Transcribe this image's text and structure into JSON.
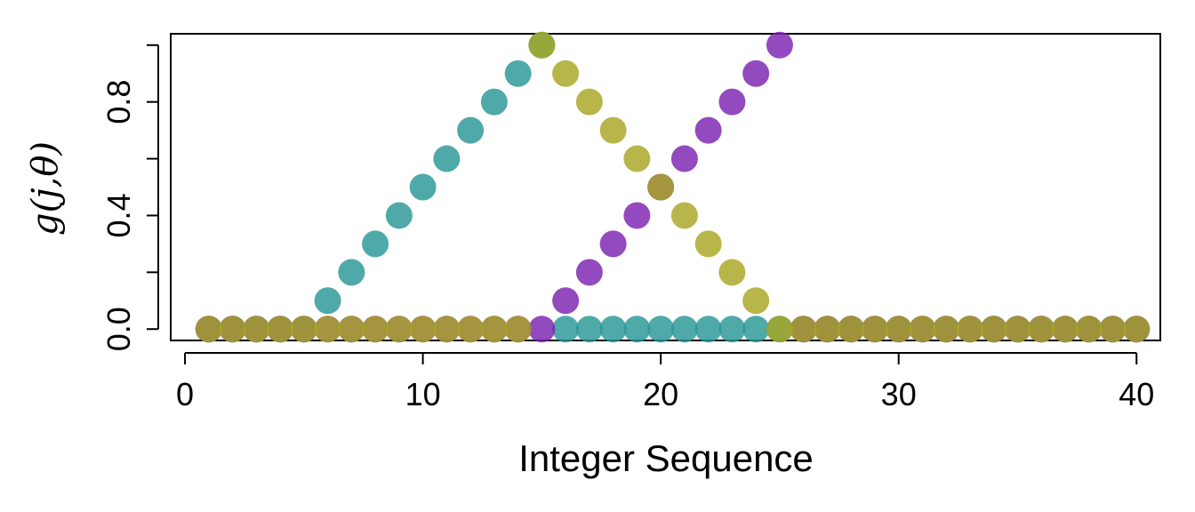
{
  "chart_data": {
    "type": "scatter",
    "xlabel": "Integer Sequence",
    "ylabel": "g(j,θ)",
    "xlim": [
      -0.6,
      41.0
    ],
    "ylim": [
      -0.04,
      1.04
    ],
    "x_ticks": [
      "0",
      "10",
      "20",
      "30",
      "40"
    ],
    "x_tick_values": [
      0,
      10,
      20,
      30,
      40
    ],
    "y_ticks": [
      "0.0",
      "0.4",
      "0.8"
    ],
    "y_tick_values": [
      0.0,
      0.4,
      0.8
    ],
    "y_minor_tick_values": [
      0.2,
      0.6,
      1.0
    ],
    "grid": false,
    "legend": "none",
    "series": [
      {
        "color": "#2a9696",
        "x": [
          1,
          2,
          3,
          4,
          5,
          6,
          7,
          8,
          9,
          10,
          11,
          12,
          13,
          14,
          15,
          16,
          17,
          18,
          19,
          20,
          21,
          22,
          23,
          24,
          25,
          26,
          27,
          28,
          29,
          30,
          31,
          32,
          33,
          34,
          35,
          36,
          37,
          38,
          39,
          40
        ],
        "values": [
          0,
          0,
          0,
          0,
          0,
          0.1,
          0.2,
          0.3,
          0.4,
          0.5,
          0.6,
          0.7,
          0.8,
          0.9,
          1.0,
          0,
          0,
          0,
          0,
          0,
          0,
          0,
          0,
          0,
          0,
          0,
          0,
          0,
          0,
          0,
          0,
          0,
          0,
          0,
          0,
          0,
          0,
          0,
          0,
          0
        ]
      },
      {
        "color": "#7b22b0",
        "x": [
          1,
          2,
          3,
          4,
          5,
          6,
          7,
          8,
          9,
          10,
          11,
          12,
          13,
          14,
          15,
          16,
          17,
          18,
          19,
          20,
          21,
          22,
          23,
          24,
          25,
          26,
          27,
          28,
          29,
          30,
          31,
          32,
          33,
          34,
          35,
          36,
          37,
          38,
          39,
          40
        ],
        "values": [
          0,
          0,
          0,
          0,
          0,
          0,
          0,
          0,
          0,
          0,
          0,
          0,
          0,
          0,
          0,
          0.1,
          0.2,
          0.3,
          0.4,
          0.5,
          0.6,
          0.7,
          0.8,
          0.9,
          1.0,
          0,
          0,
          0,
          0,
          0,
          0,
          0,
          0,
          0,
          0,
          0,
          0,
          0,
          0,
          0
        ]
      },
      {
        "color": "#a8a622",
        "x": [
          1,
          2,
          3,
          4,
          5,
          6,
          7,
          8,
          9,
          10,
          11,
          12,
          13,
          14,
          15,
          16,
          17,
          18,
          19,
          20,
          21,
          22,
          23,
          24,
          25,
          26,
          27,
          28,
          29,
          30,
          31,
          32,
          33,
          34,
          35,
          36,
          37,
          38,
          39,
          40
        ],
        "values": [
          0,
          0,
          0,
          0,
          0,
          0,
          0,
          0,
          0,
          0,
          0,
          0,
          0,
          0,
          1.0,
          0.9,
          0.8,
          0.7,
          0.6,
          0.5,
          0.4,
          0.3,
          0.2,
          0.1,
          0,
          0,
          0,
          0,
          0,
          0,
          0,
          0,
          0,
          0,
          0,
          0,
          0,
          0,
          0,
          0
        ]
      }
    ]
  }
}
